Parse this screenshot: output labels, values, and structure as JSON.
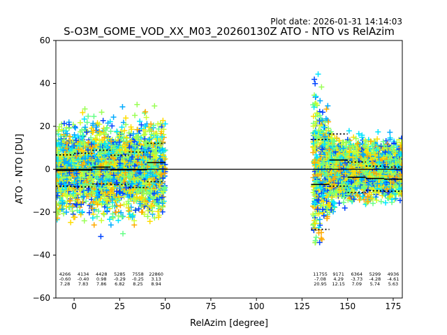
{
  "figure": {
    "plot_date": "Plot date: 2026-01-31 14:14:03"
  },
  "chart_data": {
    "type": "scatter",
    "title": "S-O3M_GOME_VOD_XX_M03_20260130Z ATO - NTO vs RelAzim",
    "xlabel": "RelAzim [degree]",
    "ylabel": "ATO - NTO [DU]",
    "xlim": [
      -10,
      180
    ],
    "ylim": [
      -60,
      60
    ],
    "xticks": [
      0,
      25,
      50,
      75,
      100,
      125,
      150,
      175
    ],
    "yticks": [
      -60,
      -40,
      -20,
      0,
      20,
      40,
      60
    ],
    "grid": false,
    "zero_line": 0,
    "point_colors": [
      "#00e5ff",
      "#00aaff",
      "#0044ff",
      "#66ff88",
      "#99ff55",
      "#ccff33",
      "#ffdd00",
      "#ffaa00"
    ],
    "scatter_clusters": [
      {
        "x_range": [
          -10,
          50
        ],
        "y_center": 0,
        "y_spread": 22
      },
      {
        "x_range": [
          131,
          180
        ],
        "y_center": 0,
        "y_spread": 18
      }
    ],
    "bins": [
      {
        "center": -5,
        "half_width": 5,
        "count": "4266",
        "mean": "-0.60",
        "std": "7.28",
        "mean_val": -0.6,
        "std_val": 7.28
      },
      {
        "center": 5,
        "half_width": 5,
        "count": "4134",
        "mean": "-0.40",
        "std": "7.83",
        "mean_val": -0.4,
        "std_val": 7.83
      },
      {
        "center": 15,
        "half_width": 5,
        "count": "4428",
        "mean": "0.98",
        "std": "7.86",
        "mean_val": 0.98,
        "std_val": 7.86
      },
      {
        "center": 25,
        "half_width": 5,
        "count": "5285",
        "mean": "-0.29",
        "std": "6.82",
        "mean_val": -0.29,
        "std_val": 6.82
      },
      {
        "center": 35,
        "half_width": 5,
        "count": "7558",
        "mean": "-0.25",
        "std": "8.25",
        "mean_val": -0.25,
        "std_val": 8.25
      },
      {
        "center": 45,
        "half_width": 5,
        "count": "22860",
        "mean": "3.13",
        "std": "8.94",
        "mean_val": 3.13,
        "std_val": 8.94
      },
      {
        "center": 135,
        "half_width": 5,
        "count": "11755",
        "mean": "-7.08",
        "std": "20.95",
        "mean_val": -7.08,
        "std_val": 20.95
      },
      {
        "center": 145,
        "half_width": 5,
        "count": "9171",
        "mean": "4.29",
        "std": "12.15",
        "mean_val": 4.29,
        "std_val": 12.15
      },
      {
        "center": 155,
        "half_width": 5,
        "count": "6364",
        "mean": "-3.73",
        "std": "7.09",
        "mean_val": -3.73,
        "std_val": 7.09
      },
      {
        "center": 165,
        "half_width": 5,
        "count": "5299",
        "mean": "-4.28",
        "std": "5.74",
        "mean_val": -4.28,
        "std_val": 5.74
      },
      {
        "center": 175,
        "half_width": 5,
        "count": "4936",
        "mean": "-4.61",
        "std": "5.63",
        "mean_val": -4.61,
        "std_val": 5.63
      }
    ]
  }
}
